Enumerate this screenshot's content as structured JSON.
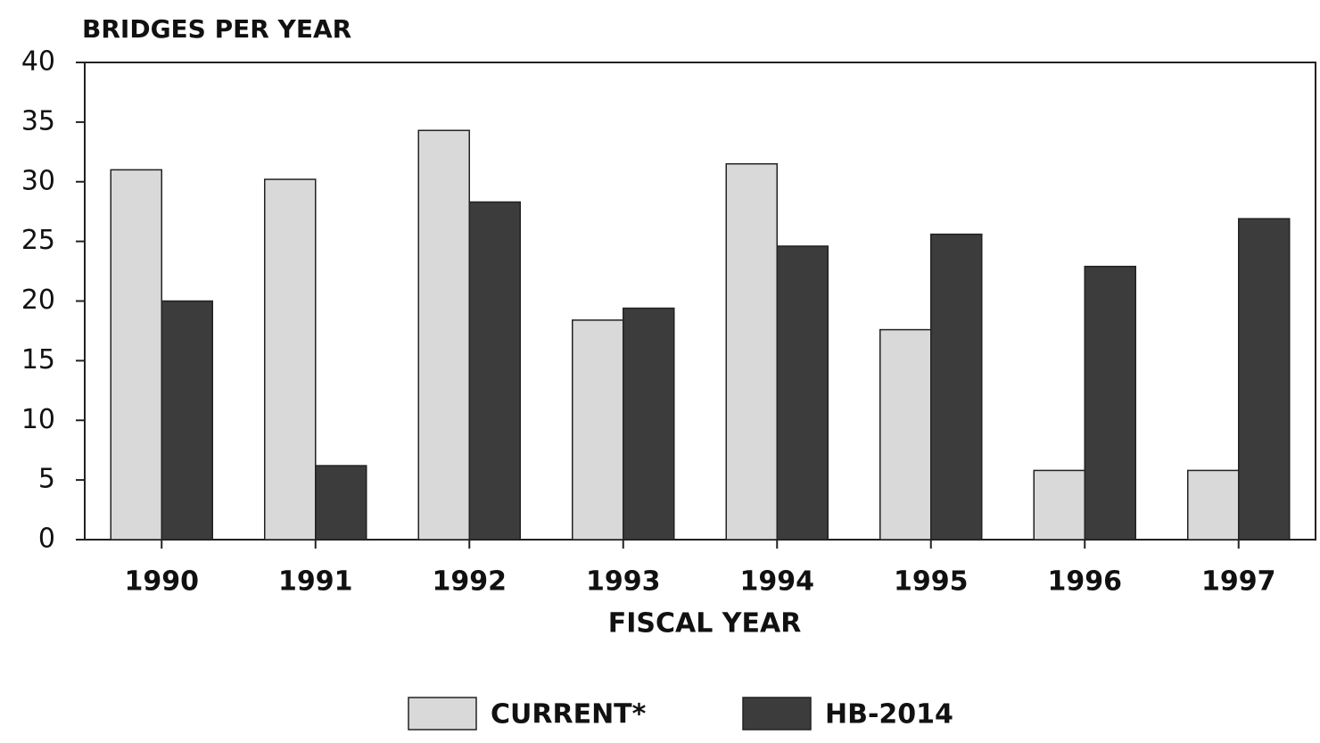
{
  "chart_data": {
    "type": "bar",
    "title": "BRIDGES PER YEAR",
    "x_label": "FISCAL YEAR",
    "categories": [
      "1990",
      "1991",
      "1992",
      "1993",
      "1994",
      "1995",
      "1996",
      "1997"
    ],
    "series": [
      {
        "name": "CURRENT*",
        "color": "#d9d9d9",
        "values": [
          31,
          30.2,
          34.3,
          18.4,
          31.5,
          17.6,
          5.8,
          5.8
        ]
      },
      {
        "name": "HB-2014",
        "color": "#3c3c3c",
        "values": [
          20,
          6.2,
          28.3,
          19.4,
          24.6,
          25.6,
          22.9,
          26.9
        ]
      }
    ],
    "ylim": [
      0,
      40
    ],
    "yticks": [
      0,
      5,
      10,
      15,
      20,
      25,
      30,
      35,
      40
    ],
    "grid": false,
    "legend": "bottom"
  }
}
